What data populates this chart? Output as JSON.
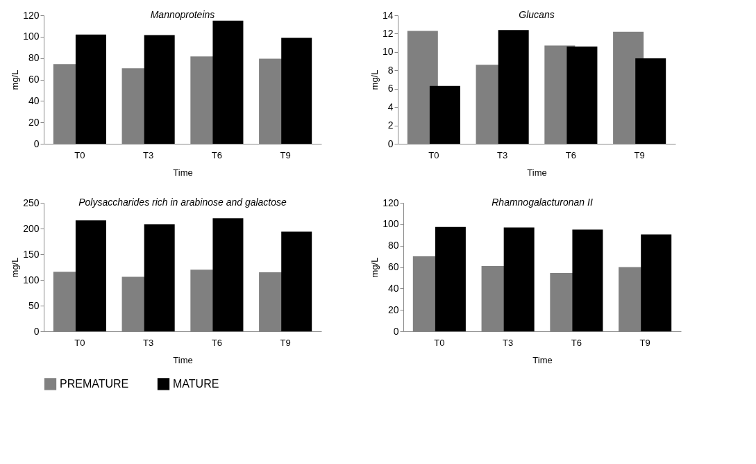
{
  "chart_data": [
    {
      "type": "bar",
      "title": "Mannoproteins",
      "xlabel": "Time",
      "ylabel": "mg/L",
      "categories": [
        "T0",
        "T3",
        "T6",
        "T9"
      ],
      "ylim": [
        0,
        120
      ],
      "yticks": [
        0,
        20,
        40,
        60,
        80,
        100,
        120
      ],
      "grid": false,
      "legend": "bottom",
      "series": [
        {
          "name": "PREMATURE",
          "color": "#808080",
          "values": [
            74.5,
            70.5,
            81.5,
            79.5
          ]
        },
        {
          "name": "MATURE",
          "color": "#000000",
          "values": [
            102,
            101.5,
            115,
            99
          ]
        }
      ]
    },
    {
      "type": "bar",
      "title": "Glucans",
      "xlabel": "Time",
      "ylabel": "mg/L",
      "categories": [
        "T0",
        "T3",
        "T6",
        "T9"
      ],
      "ylim": [
        0,
        14
      ],
      "yticks": [
        0,
        2,
        4,
        6,
        8,
        10,
        12,
        14
      ],
      "grid": false,
      "legend": "bottom",
      "series": [
        {
          "name": "PREMATURE",
          "color": "#808080",
          "values": [
            12.3,
            8.6,
            10.7,
            12.2
          ]
        },
        {
          "name": "MATURE",
          "color": "#000000",
          "values": [
            6.3,
            12.4,
            10.6,
            9.3
          ]
        }
      ]
    },
    {
      "type": "bar",
      "title": "Polysaccharides rich in arabinose and galactose",
      "xlabel": "Time",
      "ylabel": "mg/L",
      "categories": [
        "T0",
        "T3",
        "T6",
        "T9"
      ],
      "ylim": [
        0,
        250
      ],
      "yticks": [
        0,
        50,
        100,
        150,
        200,
        250
      ],
      "grid": false,
      "legend": "bottom",
      "series": [
        {
          "name": "PREMATURE",
          "color": "#808080",
          "values": [
            116,
            106,
            120,
            115
          ]
        },
        {
          "name": "MATURE",
          "color": "#000000",
          "values": [
            216,
            208,
            220,
            194
          ]
        }
      ]
    },
    {
      "type": "bar",
      "title": "Rhamnogalacturonan II",
      "xlabel": "Time",
      "ylabel": "mg/L",
      "categories": [
        "T0",
        "T3",
        "T6",
        "T9"
      ],
      "ylim": [
        0,
        120
      ],
      "yticks": [
        0,
        20,
        40,
        60,
        80,
        100,
        120
      ],
      "grid": false,
      "legend": "bottom",
      "series": [
        {
          "name": "PREMATURE",
          "color": "#808080",
          "values": [
            70,
            61,
            54.5,
            60
          ]
        },
        {
          "name": "MATURE",
          "color": "#000000",
          "values": [
            97.5,
            97,
            95,
            90.5
          ]
        }
      ]
    }
  ]
}
